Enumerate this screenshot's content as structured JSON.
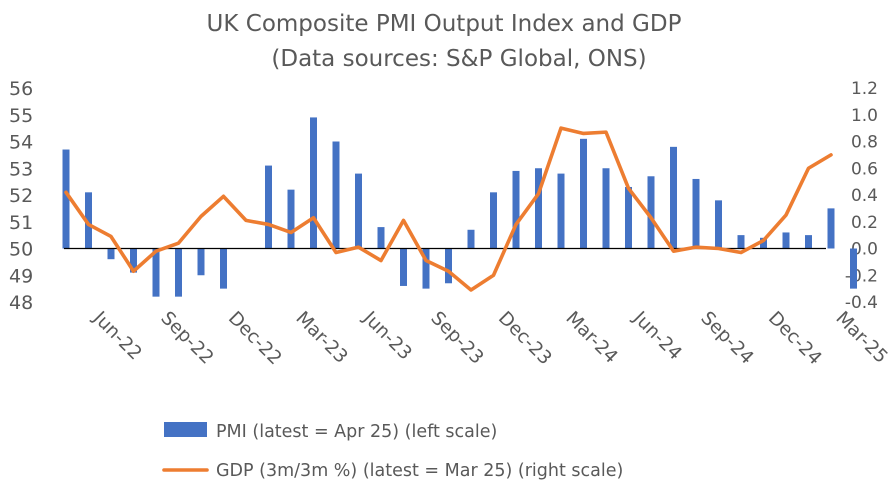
{
  "chart_data": {
    "type": "bar",
    "title": "UK Composite PMI Output Index and GDP",
    "subtitle": "(Data sources: S&P Global, ONS)",
    "x_tick_labels": [
      "Jun-22",
      "Sep-22",
      "Dec-22",
      "Mar-23",
      "Jun-23",
      "Sep-23",
      "Dec-23",
      "Mar-24",
      "Jun-24",
      "Sep-24",
      "Dec-24",
      "Mar-25"
    ],
    "x": [
      "May-22",
      "Jun-22",
      "Jul-22",
      "Aug-22",
      "Sep-22",
      "Oct-22",
      "Nov-22",
      "Dec-22",
      "Jan-23",
      "Feb-23",
      "Mar-23",
      "Apr-23",
      "May-23",
      "Jun-23",
      "Jul-23",
      "Aug-23",
      "Sep-23",
      "Oct-23",
      "Nov-23",
      "Dec-23",
      "Jan-24",
      "Feb-24",
      "Mar-24",
      "Apr-24",
      "May-24",
      "Jun-24",
      "Jul-24",
      "Aug-24",
      "Sep-24",
      "Oct-24",
      "Nov-24",
      "Dec-24",
      "Jan-25",
      "Feb-25",
      "Mar-25",
      "Apr-25"
    ],
    "left_axis": {
      "min": 48,
      "max": 56,
      "ticks": [
        48,
        49,
        50,
        51,
        52,
        53,
        54,
        55,
        56
      ],
      "baseline": 50
    },
    "right_axis": {
      "min": -0.4,
      "max": 1.2,
      "ticks": [
        "-0.4",
        "-0.2",
        "0.0",
        "0.2",
        "0.4",
        "0.6",
        "0.8",
        "1.0",
        "1.2"
      ]
    },
    "series": [
      {
        "name": "PMI (latest = Apr 25) (left scale)",
        "type": "bar",
        "axis": "left",
        "color": "#4472C4",
        "values": [
          53.7,
          52.1,
          49.6,
          49.1,
          48.2,
          48.2,
          49.0,
          48.5,
          null,
          53.1,
          52.2,
          54.9,
          54.0,
          52.8,
          50.8,
          48.6,
          48.5,
          48.7,
          50.7,
          52.1,
          52.9,
          53.0,
          52.8,
          54.1,
          53.0,
          52.3,
          52.7,
          53.8,
          52.6,
          51.8,
          50.5,
          50.4,
          50.6,
          50.5,
          51.5,
          48.5
        ]
      },
      {
        "name": "GDP (3m/3m %) (latest = Mar 25) (right scale)",
        "type": "line",
        "axis": "right",
        "color": "#ED7D31",
        "values": [
          0.42,
          0.18,
          0.09,
          -0.17,
          -0.02,
          0.04,
          0.24,
          0.39,
          0.21,
          0.18,
          0.12,
          0.23,
          -0.03,
          0.01,
          -0.09,
          0.21,
          -0.09,
          -0.17,
          -0.31,
          -0.2,
          0.18,
          0.41,
          0.9,
          0.86,
          0.87,
          0.45,
          0.23,
          -0.02,
          0.01,
          0.0,
          -0.03,
          0.06,
          0.25,
          0.6,
          0.7,
          null
        ]
      }
    ],
    "legend_position": "bottom"
  }
}
